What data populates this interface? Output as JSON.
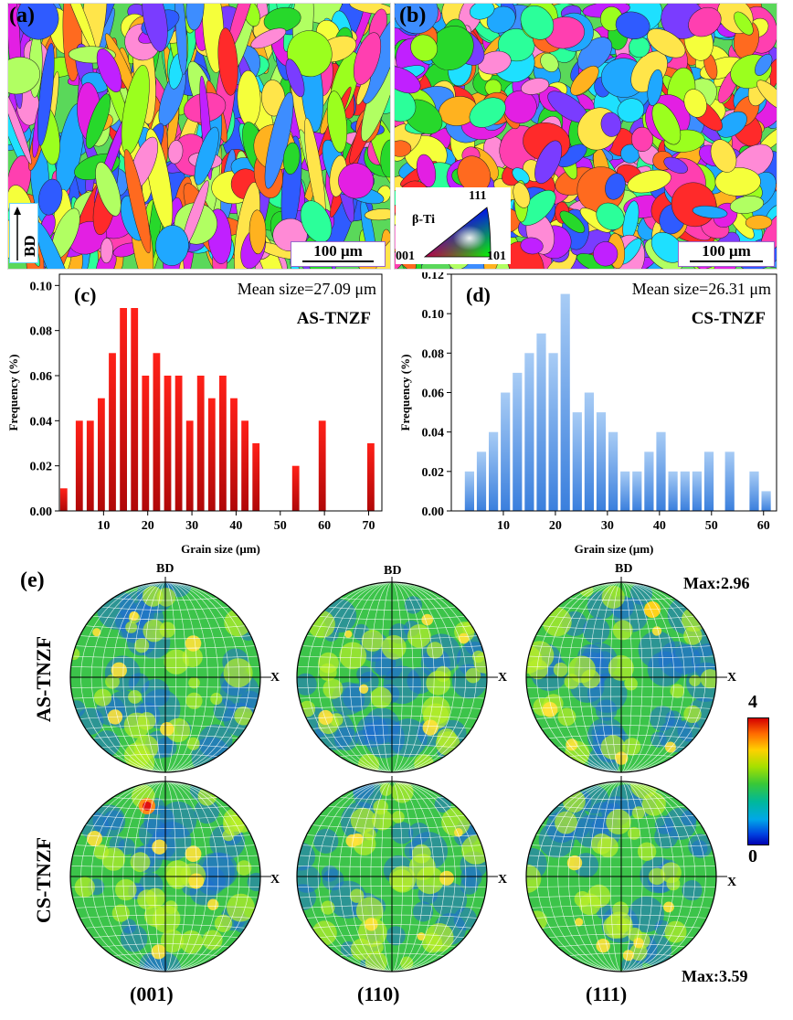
{
  "ebsd": {
    "a": {
      "label": "(a)",
      "scale": "100 μm",
      "direction": "BD"
    },
    "b": {
      "label": "(b)",
      "scale": "100 μm",
      "ipf": {
        "phase": "β-Ti",
        "corner_top": "111",
        "corner_left": "001",
        "corner_right": "101"
      }
    }
  },
  "chart_data": [
    {
      "type": "bar",
      "panel": "(c)",
      "title": "AS-TNZF",
      "annotation": "Mean size=27.09 μm",
      "xlabel": "Grain size (μm)",
      "ylabel": "Frequency (%)",
      "xlim": [
        0,
        73
      ],
      "ylim": [
        0,
        0.105
      ],
      "xticks": [
        "10",
        "20",
        "30",
        "40",
        "50",
        "60",
        "70"
      ],
      "yticks": [
        "0.00",
        "0.02",
        "0.04",
        "0.06",
        "0.08",
        "0.10"
      ],
      "color": "#e8140c",
      "x": [
        1,
        4.5,
        7,
        9.5,
        12,
        14.5,
        17,
        19.5,
        22,
        24.5,
        27,
        29.5,
        32,
        34.5,
        37,
        39.5,
        42,
        44.5,
        53.5,
        59.5,
        70.5
      ],
      "values": [
        0.01,
        0.04,
        0.04,
        0.05,
        0.07,
        0.09,
        0.09,
        0.06,
        0.07,
        0.06,
        0.06,
        0.04,
        0.06,
        0.05,
        0.06,
        0.05,
        0.04,
        0.03,
        0.02,
        0.04,
        0.03
      ]
    },
    {
      "type": "bar",
      "panel": "(d)",
      "title": "CS-TNZF",
      "annotation": "Mean size=26.31 μm",
      "xlabel": "Grain size (μm)",
      "ylabel": "Frequency (%)",
      "xlim": [
        0,
        62.5
      ],
      "ylim": [
        0,
        0.12
      ],
      "xticks": [
        "10",
        "20",
        "30",
        "40",
        "50",
        "60"
      ],
      "yticks": [
        "0.00",
        "0.02",
        "0.04",
        "0.06",
        "0.08",
        "0.10",
        "0.12"
      ],
      "color": "#6aa3e8",
      "x": [
        3.5,
        5.8,
        8.1,
        10.4,
        12.7,
        15,
        17.3,
        19.6,
        21.9,
        24.2,
        26.5,
        28.8,
        31.1,
        33.4,
        35.7,
        38,
        40.3,
        42.6,
        44.9,
        47.2,
        49.5,
        53.5,
        58.2,
        60.5
      ],
      "values": [
        0.02,
        0.03,
        0.04,
        0.06,
        0.07,
        0.08,
        0.09,
        0.08,
        0.11,
        0.05,
        0.06,
        0.05,
        0.04,
        0.02,
        0.02,
        0.03,
        0.04,
        0.02,
        0.02,
        0.02,
        0.03,
        0.03,
        0.02,
        0.01
      ]
    }
  ],
  "pole_figures": {
    "panel": "(e)",
    "rows": [
      "AS-TNZF",
      "CS-TNZF"
    ],
    "columns": [
      "(001)",
      "(110)",
      "(111)"
    ],
    "axis_top": "BD",
    "axis_right": "X",
    "max_as": "Max:2.96",
    "max_cs": "Max:3.59",
    "colorbar": {
      "max": "4",
      "min": "0"
    }
  }
}
